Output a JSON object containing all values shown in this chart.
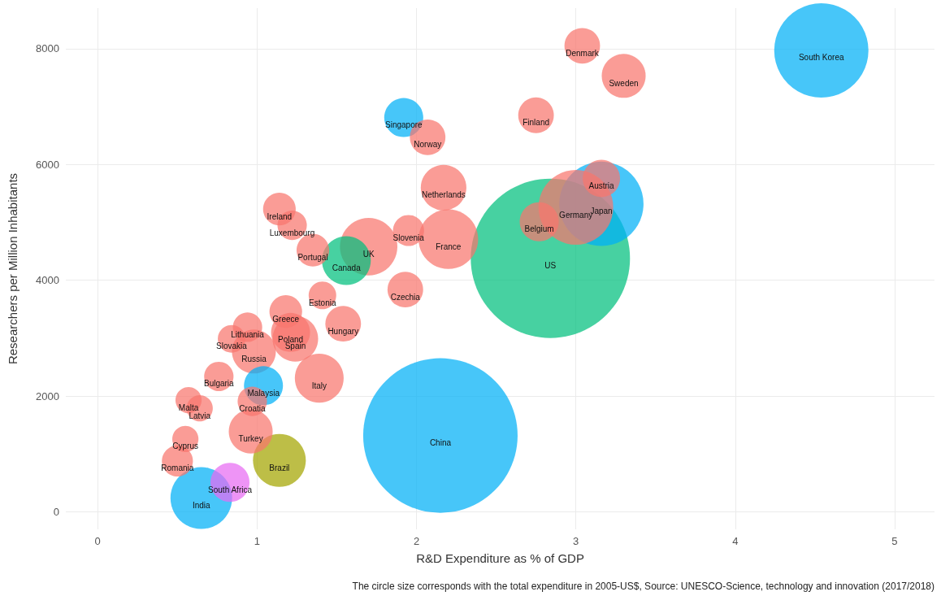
{
  "chart_data": {
    "type": "bubble",
    "xlabel": "R&D Expenditure as % of GDP",
    "ylabel": "Researchers per Million Inhabitants",
    "x": [
      2.84,
      2.15,
      4.54,
      3.16,
      3.0,
      2.2,
      1.7,
      1.39,
      1.56,
      1.14,
      0.65,
      1.24,
      2.17,
      0.98,
      0.96,
      3.3,
      2.77,
      3.16,
      1.21,
      1.93,
      1.92,
      2.07,
      2.75,
      3.04,
      1.95,
      1.35,
      1.14,
      1.22,
      1.54,
      1.18,
      1.41,
      0.94,
      0.84,
      1.04,
      0.97,
      0.76,
      0.57,
      0.64,
      0.55,
      0.5,
      0.83
    ],
    "values": [
      4380,
      1320,
      7970,
      5320,
      5260,
      4710,
      4580,
      2310,
      4340,
      890,
      240,
      2990,
      5600,
      2770,
      1390,
      7530,
      5010,
      5760,
      3100,
      3840,
      6810,
      6470,
      6850,
      8050,
      4860,
      4520,
      5230,
      4950,
      3250,
      3460,
      3740,
      3190,
      2990,
      2180,
      1910,
      2340,
      1930,
      1790,
      1260,
      880,
      510
    ],
    "sizes": [
      1,
      0.94,
      0.35,
      0.28,
      0.22,
      0.14,
      0.13,
      0.094,
      0.094,
      0.11,
      0.15,
      0.082,
      0.082,
      0.076,
      0.076,
      0.076,
      0.06,
      0.055,
      0.06,
      0.05,
      0.06,
      0.05,
      0.05,
      0.05,
      0.038,
      0.042,
      0.042,
      0.034,
      0.05,
      0.042,
      0.03,
      0.034,
      0.03,
      0.06,
      0.034,
      0.034,
      0.027,
      0.027,
      0.027,
      0.038,
      0.06
    ],
    "colors": [
      "#00bf7d",
      "#00b0f6",
      "#00b0f6",
      "#00b0f6",
      "#f8766d",
      "#f8766d",
      "#f8766d",
      "#f8766d",
      "#00bf7d",
      "#a3a500",
      "#00b0f6",
      "#f8766d",
      "#f8766d",
      "#f8766d",
      "#f8766d",
      "#f8766d",
      "#f8766d",
      "#f8766d",
      "#f8766d",
      "#f8766d",
      "#00b0f6",
      "#f8766d",
      "#f8766d",
      "#f8766d",
      "#f8766d",
      "#f8766d",
      "#f8766d",
      "#f8766d",
      "#f8766d",
      "#f8766d",
      "#f8766d",
      "#f8766d",
      "#f8766d",
      "#00b0f6",
      "#f8766d",
      "#f8766d",
      "#f8766d",
      "#f8766d",
      "#f8766d",
      "#f8766d",
      "#e76bf3"
    ],
    "xlim": [
      -0.2,
      5.25
    ],
    "xticks": [
      0,
      1,
      2,
      3,
      4,
      5
    ],
    "ylim": [
      -300,
      8700
    ],
    "yticks": [
      0,
      2000,
      4000,
      6000,
      8000
    ],
    "grid": true,
    "annotations": [
      {
        "text": "US",
        "x": 2.84,
        "y": 4380
      },
      {
        "text": "China",
        "x": 2.15,
        "y": 1320
      },
      {
        "text": "South Korea",
        "x": 4.54,
        "y": 7970
      },
      {
        "text": "Japan",
        "x": 3.16,
        "y": 5320
      },
      {
        "text": "Germany",
        "x": 3.0,
        "y": 5260
      },
      {
        "text": "France",
        "x": 2.2,
        "y": 4710
      },
      {
        "text": "UK",
        "x": 1.7,
        "y": 4580
      },
      {
        "text": "Italy",
        "x": 1.39,
        "y": 2310
      },
      {
        "text": "Canada",
        "x": 1.56,
        "y": 4340
      },
      {
        "text": "Brazil",
        "x": 1.14,
        "y": 890
      },
      {
        "text": "India",
        "x": 0.65,
        "y": 240
      },
      {
        "text": "Spain",
        "x": 1.24,
        "y": 2990
      },
      {
        "text": "Netherlands",
        "x": 2.17,
        "y": 5600
      },
      {
        "text": "Russia",
        "x": 0.98,
        "y": 2770
      },
      {
        "text": "Turkey",
        "x": 0.96,
        "y": 1390
      },
      {
        "text": "Sweden",
        "x": 3.3,
        "y": 7530
      },
      {
        "text": "Belgium",
        "x": 2.77,
        "y": 5010
      },
      {
        "text": "Austria",
        "x": 3.16,
        "y": 5760
      },
      {
        "text": "Poland",
        "x": 1.21,
        "y": 3100
      },
      {
        "text": "Czechia",
        "x": 1.93,
        "y": 3840
      },
      {
        "text": "Singapore",
        "x": 1.92,
        "y": 6810
      },
      {
        "text": "Norway",
        "x": 2.07,
        "y": 6470
      },
      {
        "text": "Finland",
        "x": 2.75,
        "y": 6850
      },
      {
        "text": "Denmark",
        "x": 3.04,
        "y": 8050
      },
      {
        "text": "Slovenia",
        "x": 1.95,
        "y": 4860
      },
      {
        "text": "Portugal",
        "x": 1.35,
        "y": 4520
      },
      {
        "text": "Ireland",
        "x": 1.14,
        "y": 5230
      },
      {
        "text": "Luxembourg",
        "x": 1.22,
        "y": 4950
      },
      {
        "text": "Hungary",
        "x": 1.54,
        "y": 3250
      },
      {
        "text": "Greece",
        "x": 1.18,
        "y": 3460
      },
      {
        "text": "Estonia",
        "x": 1.41,
        "y": 3740
      },
      {
        "text": "Lithuania",
        "x": 0.94,
        "y": 3190
      },
      {
        "text": "Slovakia",
        "x": 0.84,
        "y": 2990
      },
      {
        "text": "Malaysia",
        "x": 1.04,
        "y": 2180
      },
      {
        "text": "Croatia",
        "x": 0.97,
        "y": 1910
      },
      {
        "text": "Bulgaria",
        "x": 0.76,
        "y": 2340
      },
      {
        "text": "Malta",
        "x": 0.57,
        "y": 1930
      },
      {
        "text": "Latvia",
        "x": 0.64,
        "y": 1790
      },
      {
        "text": "Cyprus",
        "x": 0.55,
        "y": 1260
      },
      {
        "text": "Romania",
        "x": 0.5,
        "y": 880
      },
      {
        "text": "South Africa",
        "x": 0.83,
        "y": 510
      },
      "The circle size corresponds with the total expenditure in 2005-US$, Source: UNESCO-Science, technology and innovation (2017/2018)"
    ]
  }
}
